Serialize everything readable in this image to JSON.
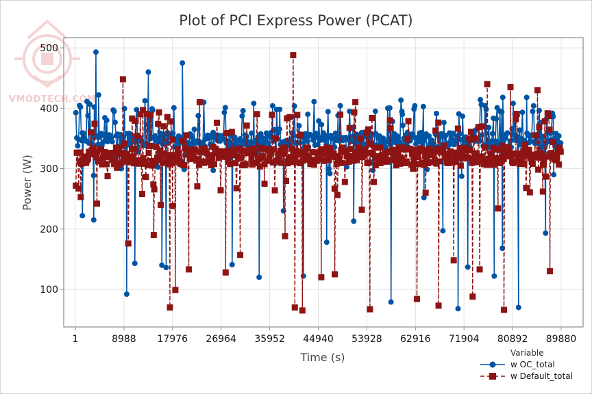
{
  "chart_data": {
    "type": "line",
    "title": "Plot of PCI Express Power (PCAT)",
    "xlabel": "Time (s)",
    "ylabel": "Power (W)",
    "xlim": [
      1,
      89880
    ],
    "ylim": [
      40,
      520
    ],
    "x_ticks": [
      1,
      8988,
      17976,
      26964,
      35952,
      44940,
      53928,
      62916,
      71904,
      80892,
      89880
    ],
    "x_tick_labels": [
      "1",
      "8988",
      "17976",
      "26964",
      "35952",
      "44940",
      "53928",
      "62916",
      "71904",
      "80892",
      "89880"
    ],
    "y_ticks": [
      100,
      200,
      300,
      400,
      500
    ],
    "y_tick_labels": [
      "100",
      "200",
      "300",
      "400",
      "500"
    ],
    "grid": true,
    "legend": {
      "title": "Variable",
      "placement": "bottom-right",
      "entries": [
        {
          "label": "w OC_total",
          "marker": "circle",
          "line": "solid",
          "color": "#0054A4"
        },
        {
          "label": "w Default_total",
          "marker": "square",
          "line": "dashed",
          "color": "#8E1414"
        }
      ]
    },
    "series": [
      {
        "name": "w OC_total",
        "color": "#0054A4",
        "typical_band": [
          335,
          360
        ],
        "typical_level": 348,
        "notable_points": [
          {
            "x": 1300,
            "y": 222
          },
          {
            "x": 3400,
            "y": 215
          },
          {
            "x": 3500,
            "y": 402
          },
          {
            "x": 3800,
            "y": 493
          },
          {
            "x": 4300,
            "y": 422
          },
          {
            "x": 5800,
            "y": 380
          },
          {
            "x": 8500,
            "y": 300
          },
          {
            "x": 9500,
            "y": 92
          },
          {
            "x": 11000,
            "y": 143
          },
          {
            "x": 13500,
            "y": 460
          },
          {
            "x": 14200,
            "y": 399
          },
          {
            "x": 16000,
            "y": 140
          },
          {
            "x": 16800,
            "y": 136
          },
          {
            "x": 19800,
            "y": 475
          },
          {
            "x": 22000,
            "y": 365
          },
          {
            "x": 25500,
            "y": 297
          },
          {
            "x": 29000,
            "y": 141
          },
          {
            "x": 33000,
            "y": 408
          },
          {
            "x": 34000,
            "y": 120
          },
          {
            "x": 36500,
            "y": 404
          },
          {
            "x": 37800,
            "y": 398
          },
          {
            "x": 38500,
            "y": 230
          },
          {
            "x": 41000,
            "y": 325
          },
          {
            "x": 42200,
            "y": 122
          },
          {
            "x": 43000,
            "y": 390
          },
          {
            "x": 46500,
            "y": 178
          },
          {
            "x": 48600,
            "y": 388
          },
          {
            "x": 51500,
            "y": 213
          },
          {
            "x": 55500,
            "y": 395
          },
          {
            "x": 57800,
            "y": 400
          },
          {
            "x": 58400,
            "y": 79
          },
          {
            "x": 60500,
            "y": 390
          },
          {
            "x": 62800,
            "y": 404
          },
          {
            "x": 64500,
            "y": 252
          },
          {
            "x": 68000,
            "y": 197
          },
          {
            "x": 70800,
            "y": 68
          },
          {
            "x": 72600,
            "y": 137
          },
          {
            "x": 76000,
            "y": 398
          },
          {
            "x": 77500,
            "y": 122
          },
          {
            "x": 79000,
            "y": 168
          },
          {
            "x": 81000,
            "y": 408
          },
          {
            "x": 82000,
            "y": 70
          },
          {
            "x": 83500,
            "y": 418
          },
          {
            "x": 87000,
            "y": 193
          },
          {
            "x": 88500,
            "y": 290
          }
        ]
      },
      {
        "name": "w Default_total",
        "color": "#8E1414",
        "typical_band": [
          305,
          335
        ],
        "typical_level": 322,
        "notable_points": [
          {
            "x": 1000,
            "y": 253
          },
          {
            "x": 4000,
            "y": 242
          },
          {
            "x": 8800,
            "y": 448
          },
          {
            "x": 9800,
            "y": 176
          },
          {
            "x": 10500,
            "y": 383
          },
          {
            "x": 12500,
            "y": 397
          },
          {
            "x": 14500,
            "y": 190
          },
          {
            "x": 15800,
            "y": 240
          },
          {
            "x": 17500,
            "y": 70
          },
          {
            "x": 18000,
            "y": 238
          },
          {
            "x": 18500,
            "y": 99
          },
          {
            "x": 21000,
            "y": 133
          },
          {
            "x": 23000,
            "y": 410
          },
          {
            "x": 27800,
            "y": 128
          },
          {
            "x": 30500,
            "y": 157
          },
          {
            "x": 35000,
            "y": 275
          },
          {
            "x": 38800,
            "y": 188
          },
          {
            "x": 40300,
            "y": 488
          },
          {
            "x": 40600,
            "y": 70
          },
          {
            "x": 42000,
            "y": 65
          },
          {
            "x": 45500,
            "y": 120
          },
          {
            "x": 48000,
            "y": 125
          },
          {
            "x": 51800,
            "y": 410
          },
          {
            "x": 53000,
            "y": 232
          },
          {
            "x": 54500,
            "y": 67
          },
          {
            "x": 58200,
            "y": 380
          },
          {
            "x": 63200,
            "y": 84
          },
          {
            "x": 64800,
            "y": 260
          },
          {
            "x": 67200,
            "y": 73
          },
          {
            "x": 70000,
            "y": 148
          },
          {
            "x": 73500,
            "y": 88
          },
          {
            "x": 74800,
            "y": 133
          },
          {
            "x": 76200,
            "y": 440
          },
          {
            "x": 78200,
            "y": 234
          },
          {
            "x": 79300,
            "y": 66
          },
          {
            "x": 80500,
            "y": 435
          },
          {
            "x": 81500,
            "y": 382
          },
          {
            "x": 85500,
            "y": 430
          },
          {
            "x": 86500,
            "y": 262
          },
          {
            "x": 87800,
            "y": 130
          }
        ]
      }
    ]
  },
  "watermark": {
    "text": "VMODTECH.COM"
  }
}
